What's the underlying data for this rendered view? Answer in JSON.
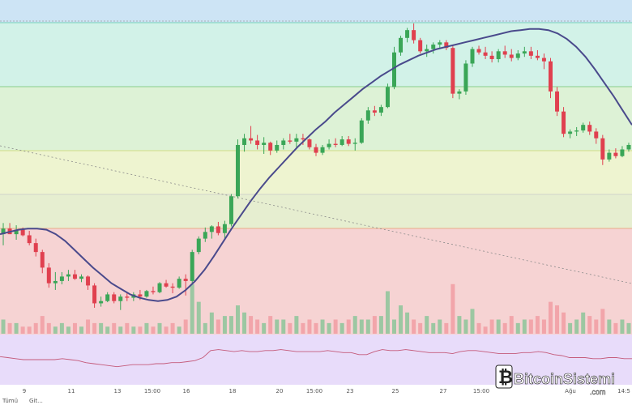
{
  "chart_data": {
    "type": "candlestick",
    "x_ticks": [
      "9",
      "11",
      "13",
      "15:00",
      "16",
      "18",
      "20",
      "15:00",
      "23",
      "25",
      "27",
      "15:00",
      "Ağu",
      "14:5"
    ],
    "bottom_left_labels": [
      "Tümü",
      "Git..."
    ],
    "fib_bands": [
      "#cde4f5",
      "#d2f2e8",
      "#ddf2d6",
      "#eef4d0",
      "#e6eed0",
      "#f6d3d3"
    ],
    "candle_colors": {
      "up": "#3aa657",
      "down": "#e0404f"
    },
    "volume_colors": {
      "up": "#9cc7a2",
      "down": "#f2a5aa"
    },
    "ma_color": "#4a4a8c",
    "rsi_panel_color": "#e8dcfa",
    "rsi_line_color": "#c45a7a",
    "candles": [
      [
        100,
        101,
        99,
        100.5
      ],
      [
        100.5,
        101,
        100,
        100
      ],
      [
        100,
        100.8,
        99.5,
        100.4
      ],
      [
        100.4,
        100.6,
        99.8,
        99.9
      ],
      [
        99.9,
        100.3,
        99,
        99.2
      ],
      [
        99.2,
        99.6,
        98,
        98.4
      ],
      [
        98.4,
        98.6,
        96.5,
        97
      ],
      [
        97,
        97.4,
        95.2,
        95.6
      ],
      [
        95.6,
        96.6,
        95,
        95.8
      ],
      [
        95.8,
        96.6,
        95.5,
        96.2
      ],
      [
        96.2,
        96.8,
        95.8,
        96.4
      ],
      [
        96.4,
        96.8,
        95.9,
        96.0
      ],
      [
        96.0,
        96.4,
        95.7,
        96.2
      ],
      [
        96.2,
        96.3,
        95,
        95.4
      ],
      [
        95.4,
        95.6,
        93.4,
        93.8
      ],
      [
        93.8,
        94.4,
        93.5,
        94.0
      ],
      [
        94.0,
        94.8,
        93.9,
        94.6
      ],
      [
        94.6,
        94.8,
        93.8,
        94.0
      ],
      [
        94.0,
        94.6,
        93.2,
        94.4
      ],
      [
        94.4,
        94.8,
        94.0,
        94.3
      ],
      [
        94.3,
        94.8,
        94.0,
        94.6
      ],
      [
        94.6,
        95.0,
        94.1,
        94.4
      ],
      [
        94.4,
        95.0,
        94.3,
        94.9
      ],
      [
        94.9,
        95.3,
        94.6,
        94.8
      ],
      [
        94.8,
        95.7,
        94.7,
        95.6
      ],
      [
        95.6,
        95.9,
        95.2,
        95.3
      ],
      [
        95.3,
        95.6,
        94.7,
        95.2
      ],
      [
        95.2,
        96.2,
        95.1,
        96.0
      ],
      [
        96.0,
        96.4,
        94.5,
        95.8
      ],
      [
        95.8,
        98.6,
        95.6,
        98.4
      ],
      [
        98.4,
        99.8,
        98.2,
        99.6
      ],
      [
        99.6,
        100.6,
        99.3,
        100.2
      ],
      [
        100.2,
        100.8,
        99.6,
        100.7
      ],
      [
        100.7,
        101.1,
        99.9,
        100.1
      ],
      [
        100.1,
        101.2,
        99.6,
        100.9
      ],
      [
        100.9,
        103.6,
        100.7,
        103.4
      ],
      [
        103.4,
        108.5,
        103.2,
        108.0
      ],
      [
        108.0,
        109.0,
        107.4,
        108.6
      ],
      [
        108.6,
        109.7,
        108.1,
        108.4
      ],
      [
        108.4,
        108.9,
        107.6,
        108.0
      ],
      [
        108.0,
        108.7,
        107.2,
        108.2
      ],
      [
        108.2,
        108.3,
        107.1,
        107.5
      ],
      [
        107.5,
        108.4,
        107.3,
        108.0
      ],
      [
        108.0,
        108.6,
        107.6,
        108.4
      ],
      [
        108.4,
        109.0,
        108.1,
        108.3
      ],
      [
        108.3,
        109.0,
        107.8,
        108.6
      ],
      [
        108.6,
        109.0,
        108.0,
        108.5
      ],
      [
        108.5,
        108.6,
        107.6,
        107.8
      ],
      [
        107.8,
        108.1,
        107.0,
        107.3
      ],
      [
        107.3,
        108.0,
        107.1,
        107.8
      ],
      [
        107.8,
        108.5,
        107.6,
        108.1
      ],
      [
        108.1,
        108.6,
        107.8,
        108.0
      ],
      [
        108.0,
        108.8,
        107.9,
        108.5
      ],
      [
        108.5,
        108.8,
        107.9,
        108.1
      ],
      [
        108.1,
        108.6,
        107.5,
        108.2
      ],
      [
        108.2,
        110.4,
        108.1,
        110.2
      ],
      [
        110.2,
        111.4,
        109.9,
        111.1
      ],
      [
        111.1,
        111.5,
        110.6,
        110.9
      ],
      [
        110.9,
        111.6,
        110.6,
        111.4
      ],
      [
        111.4,
        113.5,
        111.3,
        113.2
      ],
      [
        113.2,
        116.8,
        113.0,
        116.3
      ],
      [
        116.3,
        117.8,
        116.0,
        117.6
      ],
      [
        117.6,
        118.5,
        117.2,
        118.3
      ],
      [
        118.3,
        118.9,
        117.1,
        117.4
      ],
      [
        117.4,
        117.6,
        116.2,
        116.4
      ],
      [
        116.4,
        117.0,
        115.9,
        116.6
      ],
      [
        116.6,
        117.2,
        116.2,
        117.0
      ],
      [
        117.0,
        117.4,
        116.6,
        117.2
      ],
      [
        117.2,
        117.4,
        116.5,
        116.7
      ],
      [
        116.7,
        116.9,
        112.2,
        112.6
      ],
      [
        112.6,
        113.0,
        112.1,
        112.8
      ],
      [
        112.8,
        115.6,
        112.5,
        115.3
      ],
      [
        115.3,
        116.8,
        115.0,
        116.6
      ],
      [
        116.6,
        116.9,
        116.1,
        116.3
      ],
      [
        116.3,
        116.8,
        115.7,
        116.0
      ],
      [
        116.0,
        116.4,
        115.4,
        115.7
      ],
      [
        115.7,
        116.6,
        115.4,
        116.4
      ],
      [
        116.4,
        116.9,
        115.8,
        116.1
      ],
      [
        116.1,
        116.6,
        115.5,
        115.8
      ],
      [
        115.8,
        116.5,
        115.6,
        116.2
      ],
      [
        116.2,
        116.8,
        115.9,
        116.4
      ],
      [
        116.4,
        116.8,
        115.7,
        116.0
      ],
      [
        116.0,
        116.5,
        115.6,
        115.8
      ],
      [
        115.8,
        116.2,
        114.8,
        115.5
      ],
      [
        115.5,
        115.8,
        112.2,
        112.8
      ],
      [
        112.8,
        113.2,
        110.6,
        111.0
      ],
      [
        111.0,
        111.4,
        108.7,
        109.0
      ],
      [
        109.0,
        109.4,
        108.6,
        109.2
      ],
      [
        109.2,
        109.6,
        108.8,
        109.3
      ],
      [
        109.3,
        110.0,
        109.1,
        109.8
      ],
      [
        109.8,
        110.1,
        108.9,
        109.2
      ],
      [
        109.2,
        109.5,
        108.1,
        108.6
      ],
      [
        108.6,
        108.9,
        106.2,
        106.7
      ],
      [
        106.7,
        107.6,
        106.5,
        107.3
      ],
      [
        107.3,
        107.7,
        106.8,
        107.0
      ],
      [
        107.0,
        107.9,
        106.9,
        107.6
      ],
      [
        107.6,
        108.2,
        107.4,
        108.0
      ]
    ],
    "volumes": [
      4,
      3,
      3,
      2,
      2,
      3,
      5,
      3,
      2,
      3,
      2,
      3,
      2,
      4,
      3,
      3,
      2,
      3,
      2,
      3,
      2,
      2,
      3,
      2,
      3,
      2,
      3,
      2,
      4,
      14,
      9,
      3,
      6,
      4,
      5,
      5,
      8,
      6,
      5,
      4,
      3,
      5,
      4,
      4,
      3,
      5,
      3,
      4,
      3,
      4,
      3,
      4,
      3,
      4,
      5,
      4,
      4,
      5,
      5,
      12,
      4,
      8,
      6,
      4,
      3,
      5,
      3,
      4,
      3,
      14,
      5,
      4,
      7,
      3,
      2,
      4,
      4,
      3,
      5,
      3,
      4,
      4,
      5,
      4,
      9,
      8,
      6,
      3,
      4,
      6,
      5,
      4,
      7,
      4,
      3,
      4,
      3
    ],
    "ma": [
      100.0,
      100.2,
      100.4,
      100.5,
      100.5,
      100.4,
      100.0,
      99.4,
      98.6,
      97.8,
      97.0,
      96.3,
      95.6,
      95.1,
      94.6,
      94.3,
      94.1,
      94.0,
      94.1,
      94.4,
      95.0,
      95.8,
      96.8,
      98.0,
      99.3,
      100.6,
      101.8,
      103.0,
      104.1,
      105.1,
      106.0,
      106.9,
      107.8,
      108.6,
      109.4,
      110.1,
      110.9,
      111.6,
      112.3,
      113.0,
      113.6,
      114.2,
      114.7,
      115.2,
      115.6,
      116.0,
      116.3,
      116.6,
      116.8,
      117.0,
      117.2,
      117.4,
      117.6,
      117.8,
      118.0,
      118.2,
      118.3,
      118.4,
      118.4,
      118.3,
      118.0,
      117.5,
      116.8,
      115.9,
      114.8,
      113.6,
      112.4,
      111.1,
      109.8
    ],
    "rsi": [
      58,
      57,
      56,
      55,
      55,
      55,
      55,
      55,
      56,
      55,
      54,
      52,
      51,
      50,
      49,
      48,
      49,
      50,
      50,
      50,
      51,
      51,
      52,
      52,
      53,
      54,
      57,
      64,
      65,
      64,
      63,
      64,
      63,
      63,
      64,
      64,
      65,
      64,
      63,
      63,
      63,
      63,
      64,
      63,
      62,
      62,
      60,
      60,
      63,
      65,
      64,
      64,
      65,
      64,
      63,
      62,
      62,
      62,
      61,
      63,
      64,
      64,
      63,
      62,
      61,
      61,
      61,
      62,
      62,
      63,
      62,
      60,
      59,
      57,
      57,
      57,
      56,
      56,
      57,
      57,
      56,
      56
    ]
  },
  "brand": {
    "name": "BitcoinSistemi",
    "suffix": ".com"
  }
}
